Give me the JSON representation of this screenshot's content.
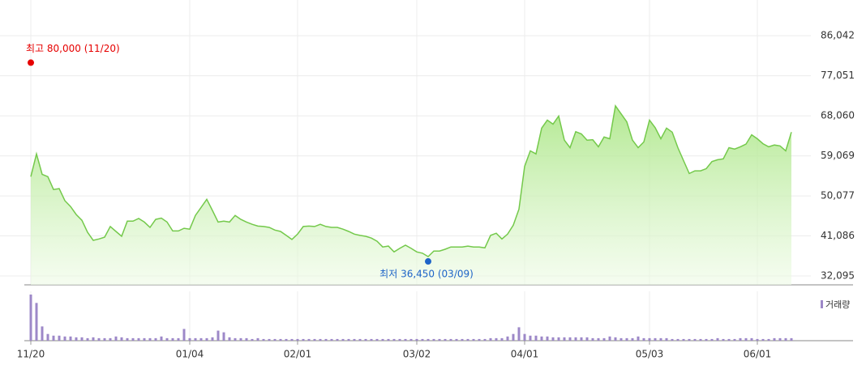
{
  "chart_data": {
    "type": "line",
    "categories": [
      "11/20",
      null,
      null,
      null,
      null,
      null,
      null,
      null,
      null,
      null,
      null,
      null,
      null,
      null,
      null,
      null,
      null,
      null,
      null,
      null,
      null,
      null,
      null,
      null,
      null,
      null,
      null,
      null,
      "01/04",
      null,
      null,
      null,
      null,
      null,
      null,
      null,
      null,
      null,
      null,
      null,
      null,
      null,
      null,
      null,
      null,
      null,
      null,
      "02/01",
      null,
      null,
      null,
      null,
      null,
      null,
      null,
      null,
      null,
      null,
      null,
      null,
      null,
      null,
      null,
      null,
      null,
      null,
      null,
      null,
      "03/02",
      null,
      null,
      null,
      null,
      null,
      null,
      null,
      null,
      null,
      null,
      null,
      null,
      null,
      null,
      null,
      null,
      null,
      null,
      "04/01",
      null,
      null,
      null,
      null,
      null,
      null,
      null,
      null,
      null,
      null,
      null,
      null,
      null,
      null,
      null,
      null,
      null,
      null,
      null,
      null,
      null,
      "05/03",
      null,
      null,
      null,
      null,
      null,
      null,
      null,
      null,
      null,
      null,
      null,
      null,
      null,
      null,
      null,
      null,
      null,
      null,
      "06/01",
      null,
      null,
      null,
      null,
      null,
      null
    ],
    "series": [
      {
        "color": "#74c94b",
        "values": [
          54400,
          59500,
          54900,
          54400,
          51500,
          51700,
          49000,
          47700,
          45900,
          44600,
          41900,
          40100,
          40400,
          40800,
          43200,
          42100,
          41000,
          44400,
          44400,
          45000,
          44200,
          43000,
          44800,
          45100,
          44200,
          42200,
          42200,
          42800,
          42600,
          45700,
          47500,
          49300,
          46800,
          44200,
          44400,
          44200,
          45700,
          44800,
          44200,
          43700,
          43300,
          43200,
          43000,
          42400,
          42100,
          41200,
          40300,
          41500,
          43200,
          43300,
          43200,
          43700,
          43200,
          43000,
          43000,
          42600,
          42100,
          41500,
          41200,
          41000,
          40600,
          39900,
          38600,
          38800,
          37500,
          38300,
          39000,
          38300,
          37500,
          37200,
          36450,
          37700,
          37700,
          38100,
          38600,
          38600,
          38600,
          38800,
          38600,
          38600,
          38400,
          41200,
          41700,
          40400,
          41500,
          43500,
          47100,
          56700,
          60200,
          59500,
          65300,
          67100,
          66200,
          68000,
          62600,
          60900,
          64500,
          64000,
          62600,
          62700,
          61100,
          63300,
          62900,
          70300,
          68500,
          66700,
          62600,
          60900,
          62200,
          67100,
          65400,
          62900,
          65300,
          64400,
          60900,
          58000,
          55100,
          55700,
          55700,
          56200,
          57800,
          58200,
          58400,
          60900,
          60600,
          61100,
          61700,
          63800,
          62900,
          61800,
          61100,
          61500,
          61300,
          60200,
          64400
        ]
      },
      {
        "name": "거래량",
        "color": "#9d88c8",
        "values": [
          55,
          45,
          17,
          8,
          6,
          6,
          5,
          5,
          4,
          4,
          3,
          4,
          3,
          3,
          3,
          5,
          4,
          3,
          3,
          3,
          3,
          3,
          3,
          5,
          3,
          3,
          3,
          14,
          3,
          3,
          3,
          3,
          4,
          12,
          10,
          4,
          3,
          3,
          3,
          2,
          3,
          2,
          2,
          2,
          2,
          2,
          2,
          2,
          2,
          2,
          2,
          2,
          2,
          2,
          2,
          2,
          2,
          2,
          2,
          2,
          2,
          2,
          2,
          2,
          2,
          2,
          2,
          2,
          2,
          2,
          2,
          2,
          2,
          2,
          2,
          2,
          2,
          2,
          2,
          2,
          2,
          3,
          3,
          3,
          5,
          8,
          16,
          8,
          6,
          6,
          5,
          5,
          4,
          4,
          4,
          4,
          4,
          4,
          4,
          3,
          3,
          3,
          5,
          4,
          3,
          3,
          3,
          5,
          3,
          3,
          3,
          3,
          3,
          2,
          2,
          2,
          2,
          2,
          2,
          2,
          2,
          3,
          2,
          2,
          2,
          3,
          3,
          3,
          2,
          2,
          2,
          3,
          3,
          3,
          3
        ]
      }
    ],
    "annotations": [
      {
        "label": "최고 80,000 (11/20)",
        "value": 80000,
        "color": "#e60000"
      },
      {
        "label": "최저 36,450 (03/09)",
        "value": 36450,
        "color": "#1e64c8"
      }
    ],
    "ylim": [
      30100,
      86800
    ],
    "yticks": [
      {
        "value": 32095,
        "label": "32,095"
      },
      {
        "value": 41086,
        "label": "41,086"
      },
      {
        "value": 50077,
        "label": "50,077"
      },
      {
        "value": 59069,
        "label": "59,069"
      },
      {
        "value": 68060,
        "label": "68,060"
      },
      {
        "value": 77051,
        "label": "77,051"
      },
      {
        "value": 86042,
        "label": "86,042"
      }
    ],
    "grid": true
  }
}
